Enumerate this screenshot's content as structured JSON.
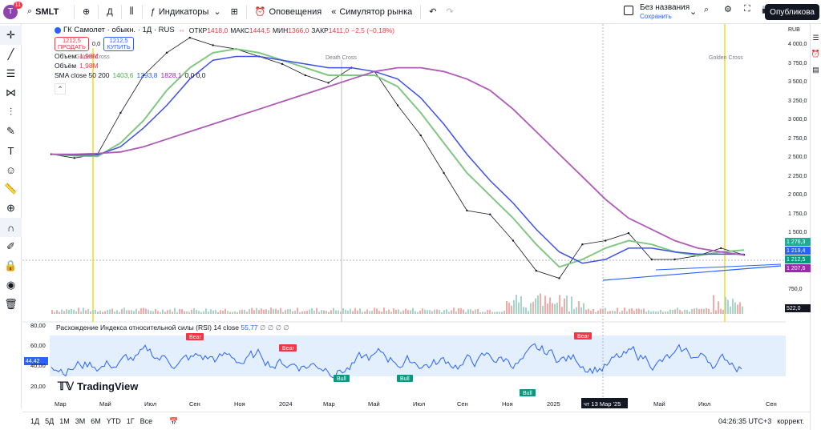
{
  "topbar": {
    "avatar_letter": "T",
    "avatar_badge": "11",
    "symbol": "SMLT",
    "interval": "Д",
    "indicators_label": "Индикаторы",
    "alerts_label": "Оповещения",
    "replay_label": "Симулятор рынка",
    "layout_title": "Без названия",
    "layout_status": "Сохранить",
    "publish_label": "Опубликова"
  },
  "legend": {
    "title": "ГК Самолет · обыкн. · 1Д · RUS",
    "ohlc": {
      "o_label": "ОТКР",
      "o": "1418,0",
      "h_label": "МАКС",
      "h": "1444,5",
      "l_label": "МИН",
      "l": "1366,0",
      "c_label": "ЗАКР",
      "c": "1411,0",
      "chg": "−2,5 (−0,18%)"
    },
    "sell_price": "1212,5",
    "sell_label": "ПРОДАТЬ",
    "spread": "0,0",
    "buy_price": "1212,5",
    "buy_label": "КУПИТЬ",
    "volume1_label": "Объем",
    "volume1": "1,98M",
    "volume2_label": "Объём",
    "volume2": "1,98M",
    "sma_label": "SMA close 50 200",
    "sma1": "1403,6",
    "sma2": "1293,8",
    "sma3": "1828,1",
    "sma_tail": "0,0 0,0"
  },
  "annotations": {
    "golden1": "Golden Cross",
    "death": "Death Cross",
    "golden2": "Golden Cross",
    "bear": "Bear",
    "bull": "Bull"
  },
  "price_scale": {
    "currency": "RUB",
    "ticks": [
      "4 000,0",
      "3 750,0",
      "3 500,0",
      "3 250,0",
      "3 000,0",
      "2 750,0",
      "2 500,0",
      "2 250,0",
      "2 000,0",
      "1 750,0",
      "1 500,0",
      "1 250,0",
      "1 000,0",
      "750,0"
    ],
    "tags": [
      {
        "value": "1 276,3",
        "color": "#22ab94"
      },
      {
        "value": "1 219,4",
        "color": "#2962ff"
      },
      {
        "value": "1 212,5",
        "color": "#089981"
      },
      {
        "value": "1 207,6",
        "color": "#9c27b0"
      }
    ],
    "volume_tag": "522,0"
  },
  "rsi": {
    "legend": "Расхождение Индекса относительной силы (RSI) 14 close",
    "value": "55,77",
    "tail": "∅ ∅ ∅ ∅",
    "ticks": [
      "80,00",
      "60,00",
      "40,00",
      "20,00"
    ],
    "current": "44,42"
  },
  "xaxis": {
    "labels": [
      "Мар",
      "Май",
      "Июл",
      "Сен",
      "Ноя",
      "2024",
      "Мар",
      "Май",
      "Июл",
      "Сен",
      "Ноя",
      "2025",
      "Май",
      "Июл",
      "Сен"
    ],
    "crosshair_label": "чт 13 Мар '25"
  },
  "watermark": "TradingView",
  "bottombar": {
    "ranges": [
      "1Д",
      "5Д",
      "1М",
      "3М",
      "6М",
      "YTD",
      "1Г",
      "Все"
    ],
    "time": "04:26:35 UTC+3",
    "adjust": "коррект."
  },
  "chart_data": {
    "type": "line",
    "title": "ГК Самолет · обыкн. · 1Д · RUS",
    "ylabel": "RUB",
    "ylim": [
      500,
      4250
    ],
    "x": [
      "2023-02",
      "2023-03",
      "2023-04",
      "2023-05",
      "2023-06",
      "2023-07",
      "2023-08",
      "2023-09",
      "2023-10",
      "2023-11",
      "2023-12",
      "2024-01",
      "2024-02",
      "2024-03",
      "2024-04",
      "2024-05",
      "2024-06",
      "2024-07",
      "2024-08",
      "2024-09",
      "2024-10",
      "2024-11",
      "2024-12",
      "2025-01",
      "2025-02",
      "2025-03",
      "2025-04",
      "2025-05",
      "2025-06",
      "2025-07",
      "2025-08"
    ],
    "series": [
      {
        "values": [
          2550,
          2500,
          2550,
          3100,
          3600,
          3900,
          4100,
          4000,
          3950,
          3850,
          3750,
          3600,
          3500,
          3700,
          3650,
          3200,
          2800,
          2300,
          1800,
          1750,
          1400,
          1000,
          900,
          1350,
          1400,
          1500,
          1150,
          1150,
          1200,
          1300,
          1212
        ]
      },
      {
        "values": [
          2550,
          2530,
          2520,
          2700,
          3000,
          3400,
          3700,
          3900,
          3950,
          3900,
          3800,
          3700,
          3600,
          3600,
          3600,
          3450,
          3100,
          2700,
          2300,
          2000,
          1700,
          1350,
          1050,
          1150,
          1300,
          1400,
          1350,
          1250,
          1200,
          1250,
          1276
        ]
      },
      {
        "values": [
          2550,
          2540,
          2540,
          2650,
          2900,
          3200,
          3550,
          3800,
          3850,
          3850,
          3800,
          3750,
          3700,
          3700,
          3650,
          3550,
          3300,
          2950,
          2550,
          2200,
          1900,
          1550,
          1250,
          1100,
          1150,
          1300,
          1300,
          1250,
          1220,
          1220,
          1219
        ]
      },
      {
        "values": [
          2550,
          2550,
          2560,
          2580,
          2650,
          2750,
          2850,
          2950,
          3050,
          3150,
          3250,
          3350,
          3450,
          3550,
          3650,
          3700,
          3700,
          3650,
          3550,
          3400,
          3150,
          2850,
          2550,
          2250,
          1950,
          1700,
          1550,
          1400,
          1300,
          1250,
          1208
        ]
      }
    ]
  }
}
